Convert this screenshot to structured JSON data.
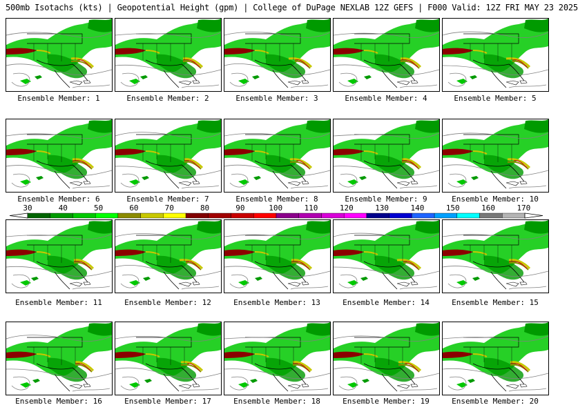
{
  "title": "500mb Isotachs (kts) | Geopotential Height (gpm) | College of DuPage NEXLAB   12Z GEFS | F000 Valid: 12Z FRI MAY 23 2025",
  "members": [
    "Ensemble Member: 1",
    "Ensemble Member: 2",
    "Ensemble Member: 3",
    "Ensemble Member: 4",
    "Ensemble Member: 5",
    "Ensemble Member: 6",
    "Ensemble Member: 7",
    "Ensemble Member: 8",
    "Ensemble Member: 9",
    "Ensemble Member: 10",
    "Ensemble Member: 11",
    "Ensemble Member: 12",
    "Ensemble Member: 13",
    "Ensemble Member: 14",
    "Ensemble Member: 15",
    "Ensemble Member: 16",
    "Ensemble Member: 17",
    "Ensemble Member: 18",
    "Ensemble Member: 19",
    "Ensemble Member: 20"
  ],
  "colorbar": {
    "labels": [
      "30",
      "40",
      "50",
      "60",
      "70",
      "80",
      "90",
      "100",
      "110",
      "120",
      "130",
      "140",
      "150",
      "160",
      "170"
    ],
    "colors": [
      "#006400",
      "#009a00",
      "#00c800",
      "#00ff00",
      "#8b8b00",
      "#c8c800",
      "#ffff00",
      "#800000",
      "#a00000",
      "#c80000",
      "#ff0000",
      "#8b008b",
      "#b000b0",
      "#d800d8",
      "#ff00ff",
      "#00008b",
      "#0000d0",
      "#1e64ff",
      "#00a0ff",
      "#00ffff",
      "#787878",
      "#b4b4b4"
    ]
  },
  "colors": {
    "land_outline": "#000000",
    "height_contour": "#808080",
    "jet_core": "#8b0000",
    "jet_mid": "#c8c800",
    "jet_low": "#00c800"
  }
}
